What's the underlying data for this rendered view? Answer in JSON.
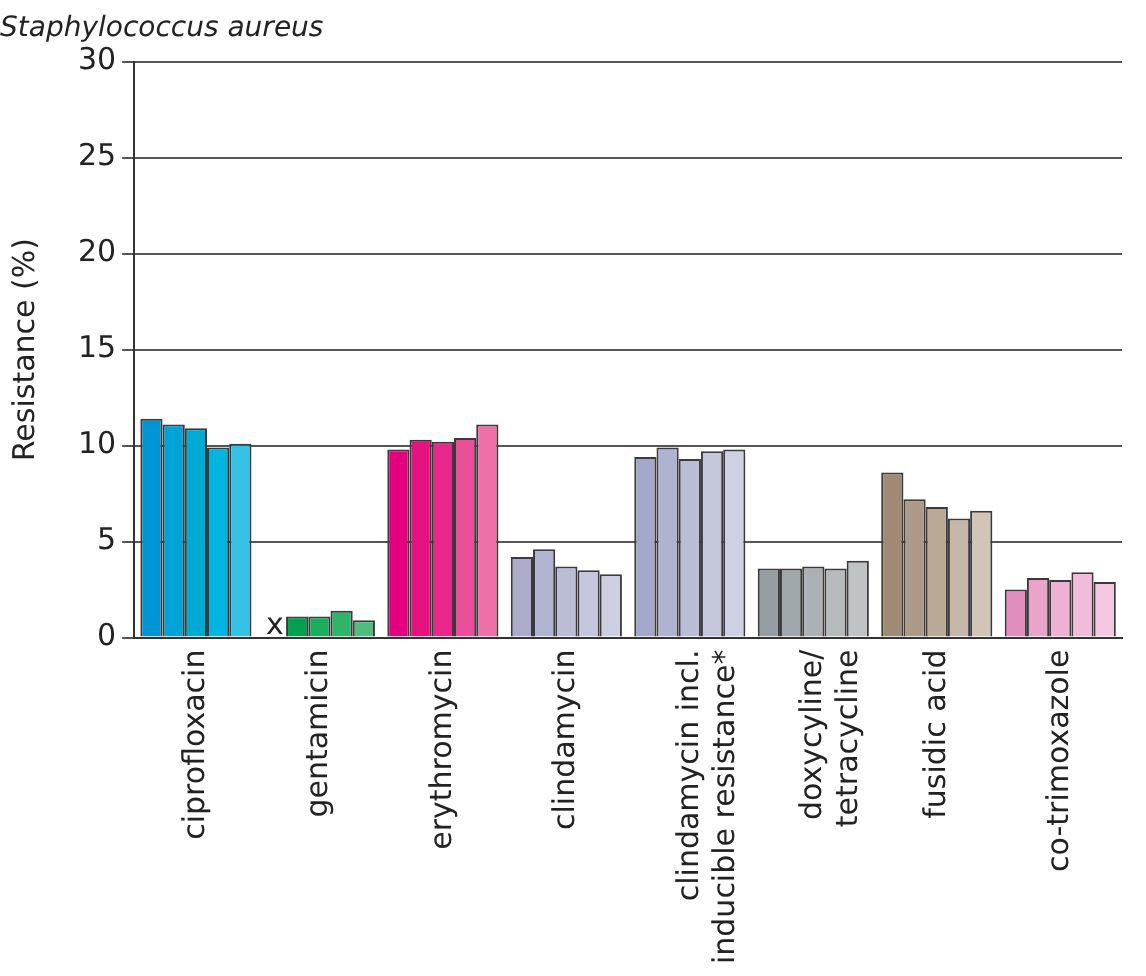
{
  "chart_data": {
    "type": "bar",
    "title": "Staphylococcus aureus",
    "ylabel": "Resistance (%)",
    "categories": [
      "ciprofloxacin",
      "gentamicin",
      "erythromycin",
      "clindamycin",
      "clindamycin incl.\ninducible resistance*",
      "doxycyline/\ntetracycline",
      "fusidic acid",
      "co-trimoxazole"
    ],
    "series": [
      {
        "values": [
          11.4,
          null,
          9.8,
          4.2,
          9.4,
          3.6,
          8.6,
          2.5
        ],
        "colors": [
          "#0095d4",
          "#00964a",
          "#e4007d",
          "#a9adca",
          "#a3a7c8",
          "#959ea3",
          "#9e8a75",
          "#e38dbf"
        ]
      },
      {
        "values": [
          11.1,
          1.1,
          10.3,
          4.6,
          9.9,
          3.6,
          7.2,
          3.1
        ],
        "colors": [
          "#00a3d6",
          "#00a04f",
          "#e6127f",
          "#b1b5d1",
          "#b0b3d0",
          "#a0a7ab",
          "#ad9a86",
          "#eaa3c9"
        ]
      },
      {
        "values": [
          10.9,
          1.1,
          10.2,
          3.7,
          9.3,
          3.7,
          6.8,
          3.0
        ],
        "colors": [
          "#00aad2",
          "#1aad5e",
          "#e8288a",
          "#babdd6",
          "#babdd6",
          "#abb1b4",
          "#bba997",
          "#eeb1d2"
        ]
      },
      {
        "values": [
          9.9,
          1.4,
          10.4,
          3.5,
          9.7,
          3.6,
          6.2,
          3.4
        ],
        "colors": [
          "#00b5e0",
          "#2fb56a",
          "#ec4f99",
          "#c3c6dc",
          "#c4c7dc",
          "#b5babd",
          "#c5b6a7",
          "#f0bcd9"
        ]
      },
      {
        "values": [
          10.1,
          0.9,
          11.1,
          3.3,
          9.8,
          4.0,
          6.6,
          2.9
        ],
        "colors": [
          "#33c2e6",
          "#4fbd80",
          "#ef6fa8",
          "#cdd0e3",
          "#ced1e4",
          "#bfc3c6",
          "#d2c4b7",
          "#f3c7df"
        ]
      }
    ],
    "ylim": [
      0,
      30
    ],
    "yticks": [
      0,
      5,
      10,
      15,
      20,
      25,
      30
    ],
    "grid": "y",
    "annotations": [
      {
        "text": "x",
        "x": "gentamicin",
        "y": 0
      }
    ]
  }
}
